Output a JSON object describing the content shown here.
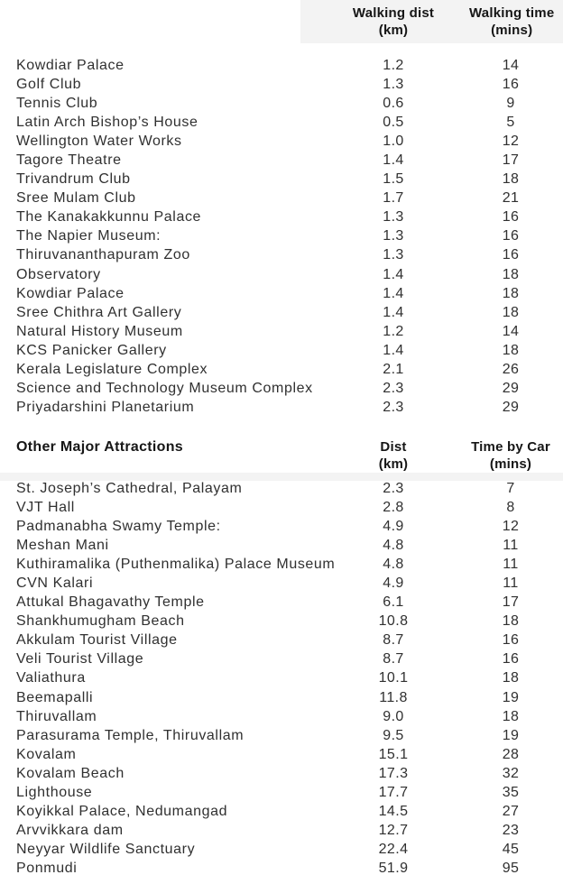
{
  "colors": {
    "shading_band": "#f3f3f3",
    "body_text": "#303030",
    "header_text": "#161616",
    "background": "#ffffff"
  },
  "section1": {
    "col_dist": {
      "line1": "Walking dist",
      "line2": "(km)"
    },
    "col_time": {
      "line1": "Walking time",
      "line2": "(mins)"
    },
    "rows": [
      {
        "name": "Kowdiar Palace",
        "dist": "1.2",
        "time": "14"
      },
      {
        "name": "Golf Club",
        "dist": "1.3",
        "time": "16"
      },
      {
        "name": "Tennis Club",
        "dist": "0.6",
        "time": "9"
      },
      {
        "name": "Latin Arch Bishop’s House",
        "dist": "0.5",
        "time": "5"
      },
      {
        "name": "Wellington Water Works",
        "dist": "1.0",
        "time": "12"
      },
      {
        "name": "Tagore Theatre",
        "dist": "1.4",
        "time": "17"
      },
      {
        "name": "Trivandrum Club",
        "dist": "1.5",
        "time": "18"
      },
      {
        "name": "Sree Mulam Club",
        "dist": "1.7",
        "time": "21"
      },
      {
        "name": "The Kanakakkunnu Palace",
        "dist": "1.3",
        "time": "16"
      },
      {
        "name": "The Napier Museum:",
        "dist": "1.3",
        "time": "16"
      },
      {
        "name": "Thiruvananthapuram Zoo",
        "dist": "1.3",
        "time": "16"
      },
      {
        "name": "Observatory",
        "dist": "1.4",
        "time": "18"
      },
      {
        "name": "Kowdiar Palace",
        "dist": "1.4",
        "time": "18"
      },
      {
        "name": "Sree Chithra Art Gallery",
        "dist": "1.4",
        "time": "18"
      },
      {
        "name": "Natural History Museum",
        "dist": "1.2",
        "time": "14"
      },
      {
        "name": "KCS Panicker Gallery",
        "dist": "1.4",
        "time": "18"
      },
      {
        "name": "Kerala Legislature Complex",
        "dist": "2.1",
        "time": "26"
      },
      {
        "name": "Science and Technology Museum Complex",
        "dist": "2.3",
        "time": "29"
      },
      {
        "name": "Priyadarshini Planetarium",
        "dist": "2.3",
        "time": "29"
      }
    ]
  },
  "section2": {
    "title": "Other Major Attractions",
    "col_dist": {
      "line1": "Dist",
      "line2": "(km)"
    },
    "col_time": {
      "line1": "Time by Car",
      "line2": "(mins)"
    },
    "rows": [
      {
        "name": "St. Joseph’s Cathedral, Palayam",
        "dist": "2.3",
        "time": "7"
      },
      {
        "name": "VJT Hall",
        "dist": "2.8",
        "time": "8"
      },
      {
        "name": "Padmanabha Swamy Temple:",
        "dist": "4.9",
        "time": "12"
      },
      {
        "name": "Meshan Mani",
        "dist": "4.8",
        "time": "11"
      },
      {
        "name": "Kuthiramalika (Puthenmalika) Palace Museum",
        "dist": "4.8",
        "time": "11"
      },
      {
        "name": "CVN Kalari",
        "dist": "4.9",
        "time": "11"
      },
      {
        "name": "Attukal Bhagavathy Temple",
        "dist": "6.1",
        "time": "17"
      },
      {
        "name": "Shankhumugham Beach",
        "dist": "10.8",
        "time": "18"
      },
      {
        "name": "Akkulam Tourist Village",
        "dist": "8.7",
        "time": "16"
      },
      {
        "name": "Veli Tourist Village",
        "dist": "8.7",
        "time": "16"
      },
      {
        "name": "Valiathura",
        "dist": "10.1",
        "time": "18"
      },
      {
        "name": "Beemapalli",
        "dist": "11.8",
        "time": "19"
      },
      {
        "name": "Thiruvallam",
        "dist": "9.0",
        "time": "18"
      },
      {
        "name": "Parasurama Temple, Thiruvallam",
        "dist": "9.5",
        "time": "19"
      },
      {
        "name": "Kovalam",
        "dist": "15.1",
        "time": "28"
      },
      {
        "name": "Kovalam Beach",
        "dist": "17.3",
        "time": "32"
      },
      {
        "name": "Lighthouse",
        "dist": "17.7",
        "time": "35"
      },
      {
        "name": "Koyikkal Palace, Nedumangad",
        "dist": "14.5",
        "time": "27"
      },
      {
        "name": "Arvvikkara dam",
        "dist": "12.7",
        "time": "23"
      },
      {
        "name": "Neyyar Wildlife Sanctuary",
        "dist": "22.4",
        "time": "45"
      },
      {
        "name": "Ponmudi",
        "dist": "51.9",
        "time": "95"
      }
    ]
  }
}
